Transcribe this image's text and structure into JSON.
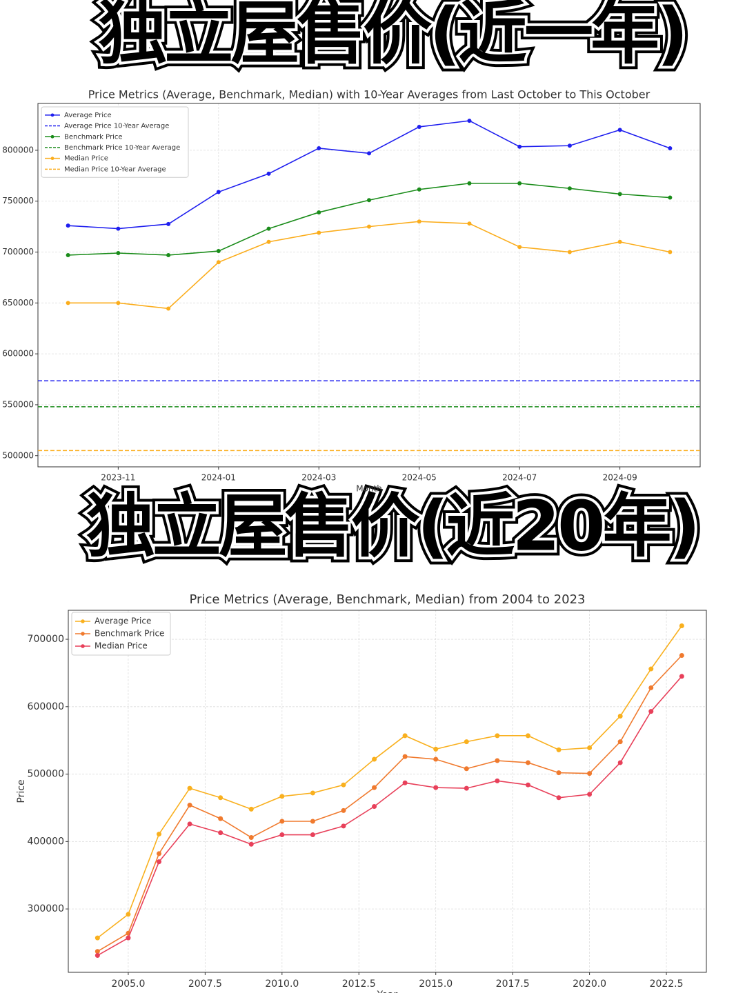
{
  "banners": [
    "独立屋售价(近一年)",
    "独立屋售价(近20年)"
  ],
  "chart_data": [
    {
      "type": "line",
      "title": "Price Metrics (Average, Benchmark, Median) with 10-Year Averages from Last October to This October",
      "x_label": "Month",
      "x": [
        "2023-10",
        "2023-11",
        "2023-12",
        "2024-01",
        "2024-02",
        "2024-03",
        "2024-04",
        "2024-05",
        "2024-06",
        "2024-07",
        "2024-08",
        "2024-09",
        "2024-10"
      ],
      "xticks": [
        "2023-11",
        "2024-01",
        "2024-03",
        "2024-05",
        "2024-07",
        "2024-09"
      ],
      "ylim": [
        489000,
        846000
      ],
      "yticks": [
        500000,
        550000,
        600000,
        650000,
        700000,
        750000,
        800000
      ],
      "grid": true,
      "legend": "upper-left",
      "series": [
        {
          "name": "Average Price",
          "color": "#1f1fef",
          "values": [
            726000,
            723000,
            727500,
            759000,
            777000,
            802000,
            797000,
            823000,
            829000,
            803500,
            804500,
            820000,
            802000
          ]
        },
        {
          "name": "Average Price 10-Year Average",
          "color": "#1f1fef",
          "linestyle": "dashed",
          "value": 573500
        },
        {
          "name": "Benchmark Price",
          "color": "#1a8c1a",
          "values": [
            697000,
            699000,
            697000,
            701000,
            723000,
            739000,
            751000,
            761500,
            767500,
            767500,
            762500,
            757000,
            753500
          ]
        },
        {
          "name": "Benchmark Price 10-Year Average",
          "color": "#1a8c1a",
          "linestyle": "dashed",
          "value": 548000
        },
        {
          "name": "Median Price",
          "color": "#fbad1c",
          "values": [
            650000,
            650000,
            644500,
            690000,
            710000,
            719000,
            725000,
            730000,
            728000,
            705000,
            700000,
            710000,
            700000
          ]
        },
        {
          "name": "Median Price 10-Year Average",
          "color": "#fbad1c",
          "linestyle": "dashed",
          "value": 505000
        }
      ]
    },
    {
      "type": "line",
      "title": "Price Metrics (Average, Benchmark, Median) from 2004 to 2023",
      "x_label": "Year",
      "y_label": "Price",
      "x": [
        2004,
        2005,
        2006,
        2007,
        2008,
        2009,
        2010,
        2011,
        2012,
        2013,
        2014,
        2015,
        2016,
        2017,
        2018,
        2019,
        2020,
        2021,
        2022,
        2023
      ],
      "xlim": [
        2003.05,
        2023.8
      ],
      "xticks": [
        {
          "value": 2005,
          "label": "2005.0"
        },
        {
          "value": 2007.5,
          "label": "2007.5"
        },
        {
          "value": 2010,
          "label": "2010.0"
        },
        {
          "value": 2012.5,
          "label": "2012.5"
        },
        {
          "value": 2015,
          "label": "2015.0"
        },
        {
          "value": 2017.5,
          "label": "2017.5"
        },
        {
          "value": 2020,
          "label": "2020.0"
        },
        {
          "value": 2022.5,
          "label": "2022.5"
        }
      ],
      "ylim": [
        206000,
        743000
      ],
      "yticks": [
        300000,
        400000,
        500000,
        600000,
        700000
      ],
      "grid": true,
      "legend": "upper-left",
      "series": [
        {
          "name": "Average Price",
          "color": "#f9b01e",
          "values": [
            257000,
            292000,
            411000,
            479000,
            465000,
            448000,
            467000,
            472000,
            484000,
            522000,
            557000,
            537000,
            548000,
            557000,
            557000,
            536000,
            539000,
            586000,
            656000,
            720000
          ]
        },
        {
          "name": "Benchmark Price",
          "color": "#f07a2e",
          "values": [
            237000,
            264000,
            382000,
            454000,
            434000,
            406000,
            430000,
            430000,
            446000,
            480000,
            526000,
            522000,
            508000,
            520000,
            517000,
            502000,
            501000,
            548000,
            628000,
            676000
          ]
        },
        {
          "name": "Median Price",
          "color": "#e8405a",
          "values": [
            231000,
            257000,
            370000,
            426000,
            413000,
            396000,
            410000,
            410000,
            423000,
            452000,
            487000,
            480000,
            479000,
            490000,
            484000,
            465000,
            470000,
            517000,
            593000,
            645000
          ]
        }
      ]
    }
  ]
}
